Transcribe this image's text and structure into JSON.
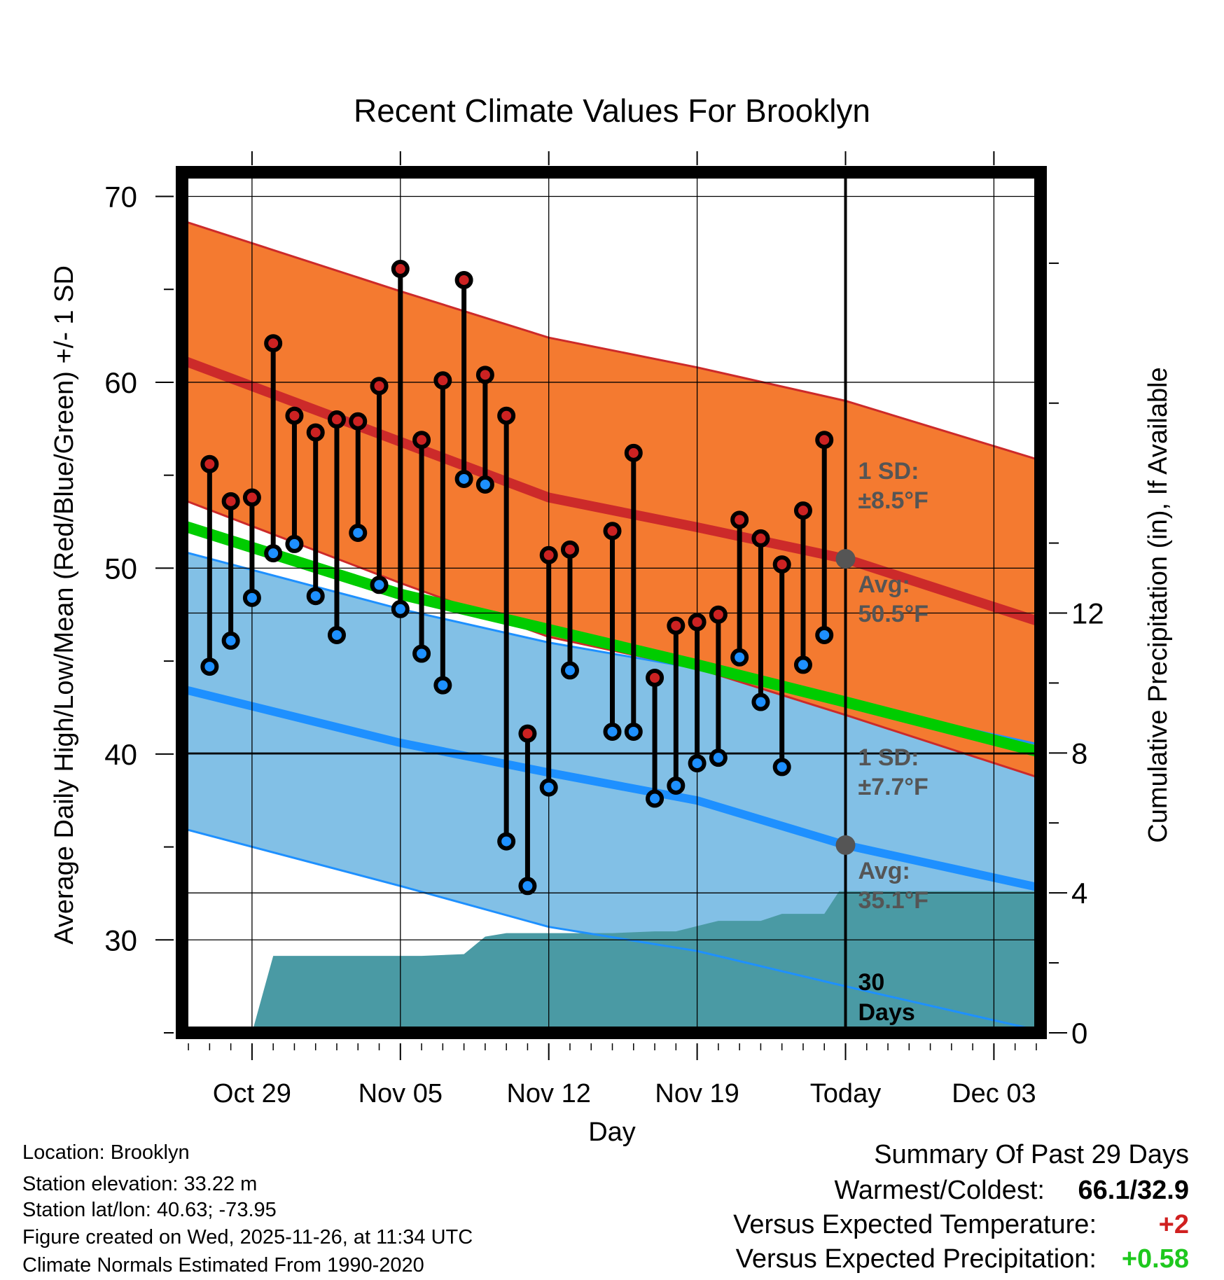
{
  "chart_data": {
    "type": "line",
    "title": "Recent Climate Values For Brooklyn",
    "xlabel": "Day",
    "ylabel": "Average Daily High/Low/Mean (Red/Blue/Green) +/- 1 SD",
    "y2label": "Cumulative Precipitation (in), If Available",
    "ylim": [
      25,
      71.3
    ],
    "y2lim": [
      0,
      24.6
    ],
    "yticks": [
      30,
      40,
      50,
      60,
      70
    ],
    "y2ticks": [
      0,
      4,
      8,
      12
    ],
    "xlim": [
      -3.3,
      37.2
    ],
    "xticks": [
      {
        "day": 0,
        "label": "Oct 29"
      },
      {
        "day": 7,
        "label": "Nov 05"
      },
      {
        "day": 14,
        "label": "Nov 12"
      },
      {
        "day": 21,
        "label": "Nov 19"
      },
      {
        "day": 28,
        "label": "Today"
      },
      {
        "day": 35,
        "label": "Dec 03"
      }
    ],
    "today_day": 28,
    "normals": {
      "day": [
        -3.3,
        7,
        14,
        21,
        28,
        37.2
      ],
      "high_avg": [
        61.2,
        56.8,
        53.8,
        52.2,
        50.5,
        47.1
      ],
      "high_upper": [
        68.7,
        64.9,
        62.4,
        60.8,
        59.0,
        55.8
      ],
      "high_lower": [
        53.7,
        49.2,
        46.3,
        44.6,
        42.1,
        38.7
      ],
      "low_avg": [
        43.5,
        40.6,
        39.0,
        37.5,
        35.1,
        32.8
      ],
      "low_upper": [
        50.9,
        47.8,
        46.0,
        44.6,
        42.8,
        40.5
      ],
      "low_lower": [
        36.0,
        32.9,
        30.7,
        29.4,
        27.5,
        25.1
      ],
      "mean_avg": [
        52.3,
        48.6,
        46.7,
        44.8,
        42.8,
        40.1
      ]
    },
    "series": [
      {
        "name": "Daily High",
        "color": "#cc2222",
        "x": [
          -2,
          -1,
          0,
          1,
          2,
          3,
          4,
          5,
          6,
          7,
          8,
          9,
          10,
          11,
          12,
          13,
          14,
          15,
          17,
          18,
          19,
          20,
          21,
          22,
          23,
          24,
          25,
          26,
          27
        ],
        "values": [
          55.6,
          53.6,
          53.8,
          62.1,
          58.2,
          57.3,
          58.0,
          57.9,
          59.8,
          66.1,
          56.9,
          60.1,
          65.5,
          60.4,
          58.2,
          41.1,
          50.7,
          51.0,
          52.0,
          56.2,
          44.1,
          46.9,
          47.1,
          47.5,
          52.6,
          51.6,
          50.2,
          53.1,
          56.9
        ]
      },
      {
        "name": "Daily Low",
        "color": "#1e90ff",
        "x": [
          -2,
          -1,
          0,
          1,
          2,
          3,
          4,
          5,
          6,
          7,
          8,
          9,
          10,
          11,
          12,
          13,
          14,
          15,
          17,
          18,
          19,
          20,
          21,
          22,
          23,
          24,
          25,
          26,
          27
        ],
        "values": [
          44.7,
          46.1,
          48.4,
          50.8,
          51.3,
          48.5,
          46.4,
          51.9,
          49.1,
          47.8,
          45.4,
          43.7,
          54.8,
          54.5,
          35.3,
          32.9,
          38.2,
          44.5,
          41.2,
          41.2,
          37.6,
          38.3,
          39.5,
          39.8,
          45.2,
          42.8,
          39.3,
          44.8,
          46.4
        ]
      }
    ],
    "precip_cumulative": {
      "x": [
        -3.3,
        0,
        1,
        3,
        4,
        6,
        8,
        10,
        11,
        12,
        17,
        19,
        20,
        22,
        24,
        25,
        26,
        27,
        27.7,
        28,
        37.2
      ],
      "values": [
        0,
        0,
        2.2,
        2.2,
        2.2,
        2.2,
        2.2,
        2.25,
        2.75,
        2.85,
        2.85,
        2.9,
        2.9,
        3.2,
        3.2,
        3.4,
        3.4,
        3.4,
        4.05,
        4.05,
        4.05
      ]
    },
    "annotations": {
      "high_sd_label": "1 SD:",
      "high_sd_value": "±8.5°F",
      "high_avg_label": "Avg:",
      "high_avg_value": "50.5°F",
      "low_sd_label": "1 SD:",
      "low_sd_value": "±7.7°F",
      "low_avg_label": "Avg:",
      "low_avg_value": "35.1°F",
      "days_number": "30",
      "days_word": "Days"
    }
  },
  "info": {
    "location": "Location: Brooklyn",
    "elevation": "Station elevation: 33.22 m",
    "latlon": "Station lat/lon: 40.63; -73.95",
    "created": "Figure created on Wed, 2025-11-26, at 11:34 UTC",
    "normals": "Climate Normals Estimated From 1990-2020"
  },
  "summary": {
    "title": "Summary Of Past 29 Days",
    "warm_cold_label": "Warmest/Coldest:",
    "warm_cold_value": "66.1/32.9",
    "temp_label": "Versus Expected Temperature:",
    "temp_value": "+2",
    "temp_color": "#d02020",
    "precip_label": "Versus Expected Precipitation:",
    "precip_value": "+0.58",
    "precip_color": "#1ec81e"
  },
  "colors": {
    "high_band": "#f47a30",
    "high_line": "#cc2a2a",
    "low_band": "#82c0e6",
    "low_line": "#1e90ff",
    "mean_line": "#00cc00",
    "precip": "#4a9aa4",
    "avg_marker": "#555555"
  }
}
